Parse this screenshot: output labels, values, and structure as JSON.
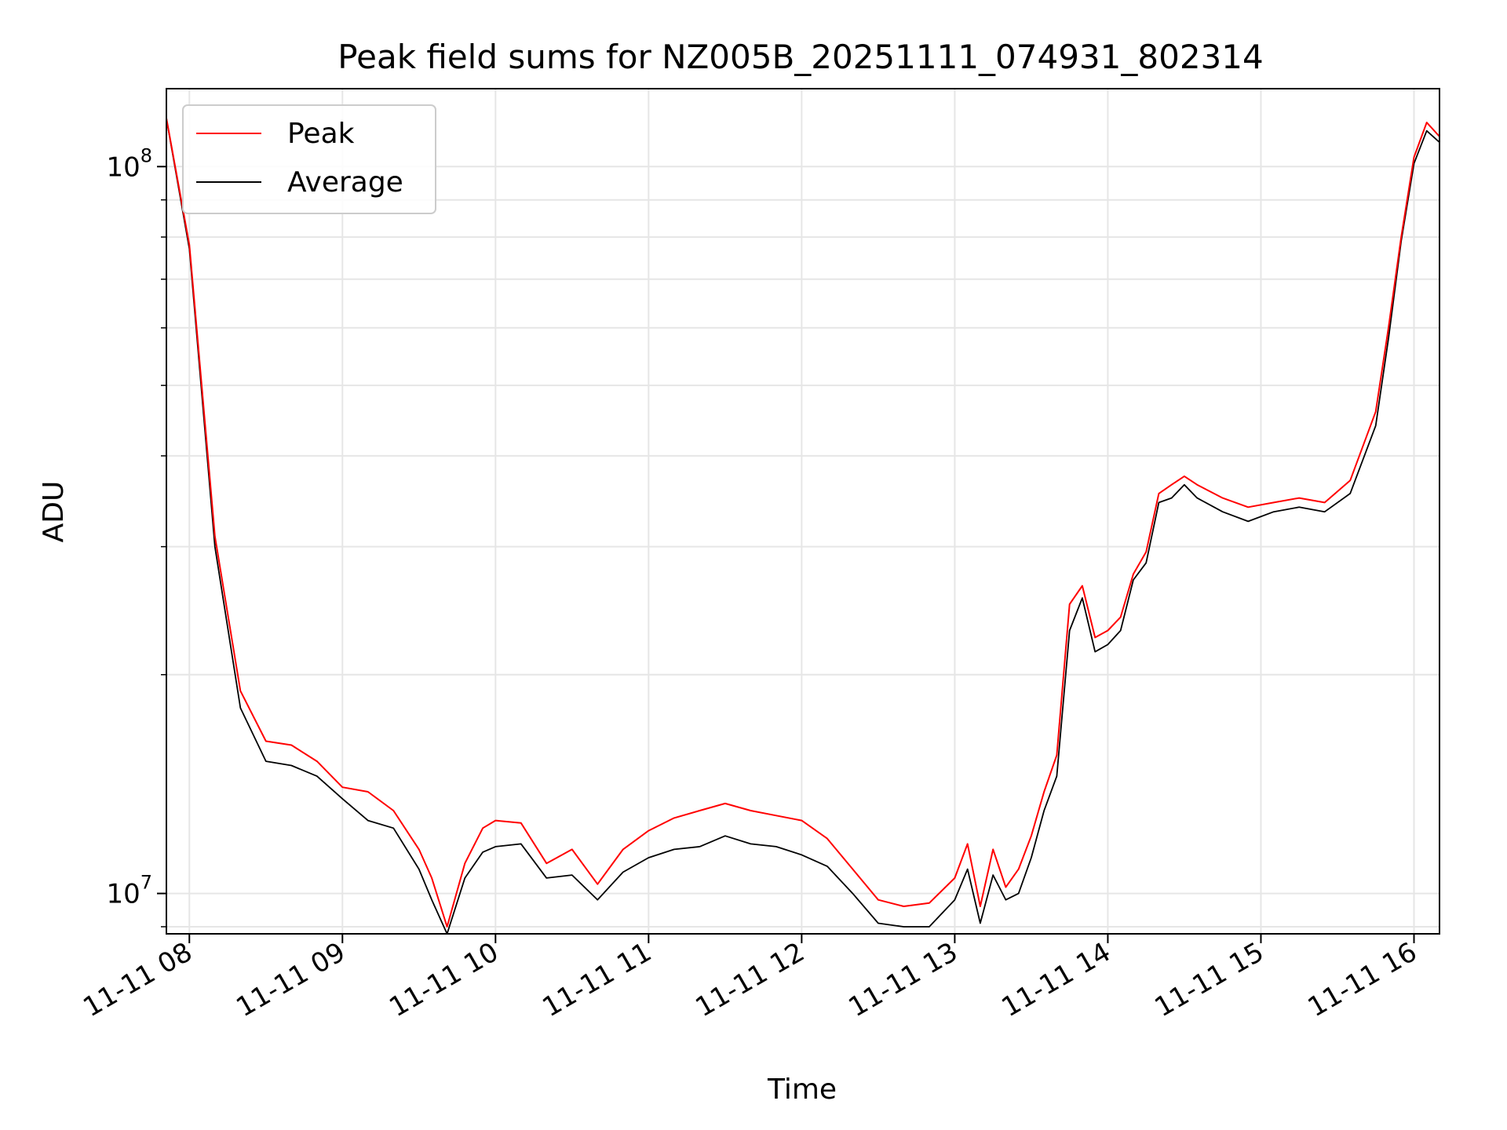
{
  "chart_data": {
    "type": "line",
    "title": "Peak field sums for NZ005B_20251111_074931_802314",
    "xlabel": "Time",
    "ylabel": "ADU",
    "yscale": "log",
    "ylim": [
      8800000,
      128000000
    ],
    "xlim": [
      "2025-11-11 07:51",
      "2025-11-11 16:10"
    ],
    "grid": true,
    "legend_position": "top-left",
    "x_ticks": [
      "11-11 08",
      "11-11 09",
      "11-11 10",
      "11-11 11",
      "11-11 12",
      "11-11 13",
      "11-11 14",
      "11-11 15",
      "11-11 16"
    ],
    "y_ticks": [
      {
        "value": 10000000,
        "label": "10^7"
      },
      {
        "value": 100000000,
        "label": "10^8"
      }
    ],
    "x": [
      "2025-11-11 07:50",
      "2025-11-11 08:00",
      "2025-11-11 08:10",
      "2025-11-11 08:20",
      "2025-11-11 08:30",
      "2025-11-11 08:40",
      "2025-11-11 08:50",
      "2025-11-11 09:00",
      "2025-11-11 09:10",
      "2025-11-11 09:20",
      "2025-11-11 09:30",
      "2025-11-11 09:35",
      "2025-11-11 09:41",
      "2025-11-11 09:48",
      "2025-11-11 09:55",
      "2025-11-11 10:00",
      "2025-11-11 10:10",
      "2025-11-11 10:20",
      "2025-11-11 10:30",
      "2025-11-11 10:40",
      "2025-11-11 10:50",
      "2025-11-11 11:00",
      "2025-11-11 11:10",
      "2025-11-11 11:20",
      "2025-11-11 11:30",
      "2025-11-11 11:40",
      "2025-11-11 11:50",
      "2025-11-11 12:00",
      "2025-11-11 12:10",
      "2025-11-11 12:20",
      "2025-11-11 12:30",
      "2025-11-11 12:40",
      "2025-11-11 12:50",
      "2025-11-11 13:00",
      "2025-11-11 13:05",
      "2025-11-11 13:10",
      "2025-11-11 13:15",
      "2025-11-11 13:20",
      "2025-11-11 13:25",
      "2025-11-11 13:30",
      "2025-11-11 13:35",
      "2025-11-11 13:40",
      "2025-11-11 13:45",
      "2025-11-11 13:50",
      "2025-11-11 13:55",
      "2025-11-11 14:00",
      "2025-11-11 14:05",
      "2025-11-11 14:10",
      "2025-11-11 14:15",
      "2025-11-11 14:20",
      "2025-11-11 14:25",
      "2025-11-11 14:30",
      "2025-11-11 14:35",
      "2025-11-11 14:45",
      "2025-11-11 14:55",
      "2025-11-11 15:05",
      "2025-11-11 15:15",
      "2025-11-11 15:25",
      "2025-11-11 15:35",
      "2025-11-11 15:45",
      "2025-11-11 15:50",
      "2025-11-11 15:55",
      "2025-11-11 16:00",
      "2025-11-11 16:05",
      "2025-11-11 16:10"
    ],
    "series": [
      {
        "name": "Peak",
        "color": "#ff0000",
        "values": [
          122000000,
          78000000,
          31000000,
          19000000,
          16200000,
          16000000,
          15200000,
          14000000,
          13800000,
          13000000,
          11500000,
          10500000,
          9000000,
          11000000,
          12300000,
          12600000,
          12500000,
          11000000,
          11500000,
          10300000,
          11500000,
          12200000,
          12700000,
          13000000,
          13300000,
          13000000,
          12800000,
          12600000,
          11900000,
          10800000,
          9800000,
          9600000,
          9700000,
          10500000,
          11700000,
          9600000,
          11500000,
          10200000,
          10800000,
          12000000,
          13800000,
          15500000,
          25000000,
          26500000,
          22500000,
          23000000,
          24000000,
          27500000,
          29500000,
          35500000,
          36500000,
          37500000,
          36500000,
          35000000,
          34000000,
          34500000,
          35000000,
          34500000,
          37000000,
          46000000,
          60000000,
          80000000,
          103000000,
          115000000,
          110000000
        ]
      },
      {
        "name": "Average",
        "color": "#000000",
        "values": [
          122000000,
          77000000,
          30000000,
          18000000,
          15200000,
          15000000,
          14500000,
          13500000,
          12600000,
          12300000,
          10800000,
          9800000,
          8800000,
          10500000,
          11400000,
          11600000,
          11700000,
          10500000,
          10600000,
          9800000,
          10700000,
          11200000,
          11500000,
          11600000,
          12000000,
          11700000,
          11600000,
          11300000,
          10900000,
          10000000,
          9100000,
          9000000,
          9000000,
          9800000,
          10800000,
          9100000,
          10600000,
          9800000,
          10000000,
          11200000,
          13000000,
          14500000,
          23000000,
          25500000,
          21500000,
          22000000,
          23000000,
          27000000,
          28500000,
          34500000,
          35000000,
          36500000,
          35000000,
          33500000,
          32500000,
          33500000,
          34000000,
          33500000,
          35500000,
          44000000,
          58000000,
          79000000,
          101000000,
          112000000,
          108000000
        ]
      }
    ]
  }
}
